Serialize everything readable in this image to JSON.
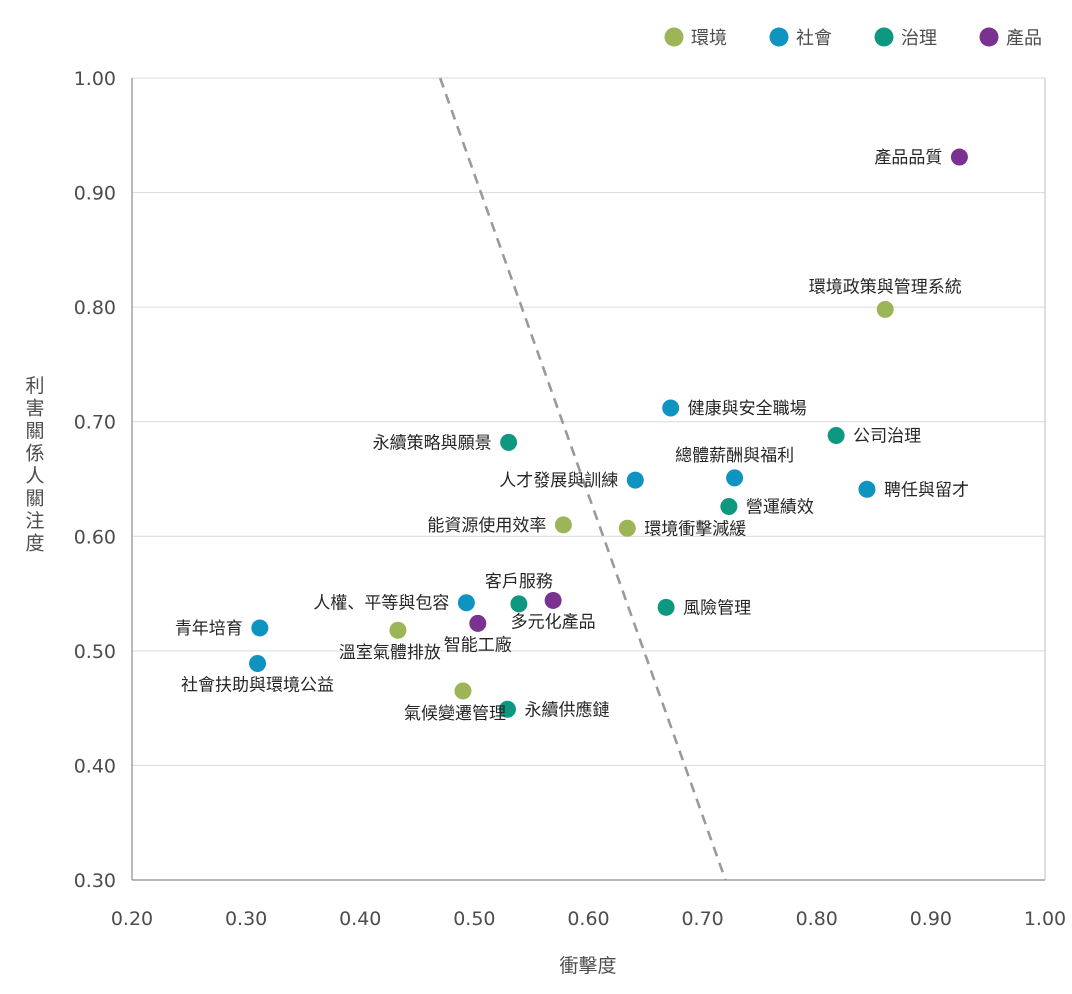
{
  "chart_data": {
    "type": "scatter",
    "xlabel": "衝擊度",
    "ylabel": "利害關係人關注度",
    "xlim": [
      0.2,
      1.0
    ],
    "ylim": [
      0.3,
      1.0
    ],
    "x_ticks": [
      "0.20",
      "0.30",
      "0.40",
      "0.50",
      "0.60",
      "0.70",
      "0.80",
      "0.90",
      "1.00"
    ],
    "y_ticks": [
      "0.30",
      "0.40",
      "0.50",
      "0.60",
      "0.70",
      "0.80",
      "0.90",
      "1.00"
    ],
    "grid": "horizontal",
    "legend_position": "top-right",
    "threshold_line": {
      "style": "dashed",
      "from": [
        0.47,
        1.0
      ],
      "to": [
        0.72,
        0.3
      ]
    },
    "categories": [
      {
        "name": "環境",
        "color": "#9bb557"
      },
      {
        "name": "社會",
        "color": "#0f94c1"
      },
      {
        "name": "治理",
        "color": "#0f9880"
      },
      {
        "name": "產品",
        "color": "#7a3190"
      }
    ],
    "points": [
      {
        "label": "產品品質",
        "category": "產品",
        "x": 0.925,
        "y": 0.931,
        "pos": "left"
      },
      {
        "label": "環境政策與管理系統",
        "category": "環境",
        "x": 0.86,
        "y": 0.798,
        "pos": "above"
      },
      {
        "label": "健康與安全職場",
        "category": "社會",
        "x": 0.672,
        "y": 0.712,
        "pos": "right"
      },
      {
        "label": "公司治理",
        "category": "治理",
        "x": 0.817,
        "y": 0.688,
        "pos": "right"
      },
      {
        "label": "永續策略與願景",
        "category": "治理",
        "x": 0.53,
        "y": 0.682,
        "pos": "left"
      },
      {
        "label": "總體薪酬與福利",
        "category": "社會",
        "x": 0.728,
        "y": 0.651,
        "pos": "above"
      },
      {
        "label": "人才發展與訓練",
        "category": "社會",
        "x": 0.641,
        "y": 0.649,
        "pos": "left"
      },
      {
        "label": "聘任與留才",
        "category": "社會",
        "x": 0.844,
        "y": 0.641,
        "pos": "right"
      },
      {
        "label": "營運績效",
        "category": "治理",
        "x": 0.723,
        "y": 0.626,
        "pos": "right"
      },
      {
        "label": "能資源使用效率",
        "category": "環境",
        "x": 0.578,
        "y": 0.61,
        "pos": "left"
      },
      {
        "label": "環境衝擊減緩",
        "category": "環境",
        "x": 0.634,
        "y": 0.607,
        "pos": "right"
      },
      {
        "label": "客戶服務",
        "category": "治理",
        "x": 0.539,
        "y": 0.541,
        "pos": "above"
      },
      {
        "label": "人權、平等與包容",
        "category": "社會",
        "x": 0.493,
        "y": 0.542,
        "pos": "left"
      },
      {
        "label": "多元化產品",
        "category": "產品",
        "x": 0.569,
        "y": 0.544,
        "pos": "below"
      },
      {
        "label": "風險管理",
        "category": "治理",
        "x": 0.668,
        "y": 0.538,
        "pos": "right"
      },
      {
        "label": "智能工廠",
        "category": "產品",
        "x": 0.503,
        "y": 0.524,
        "pos": "below"
      },
      {
        "label": "青年培育",
        "category": "社會",
        "x": 0.312,
        "y": 0.52,
        "pos": "left"
      },
      {
        "label": "溫室氣體排放",
        "category": "環境",
        "x": 0.433,
        "y": 0.518,
        "pos": "below-left"
      },
      {
        "label": "社會扶助與環境公益",
        "category": "社會",
        "x": 0.31,
        "y": 0.489,
        "pos": "below"
      },
      {
        "label": "氣候變遷管理",
        "category": "環境",
        "x": 0.49,
        "y": 0.465,
        "pos": "below-left"
      },
      {
        "label": "永續供應鏈",
        "category": "治理",
        "x": 0.529,
        "y": 0.449,
        "pos": "right"
      }
    ]
  }
}
